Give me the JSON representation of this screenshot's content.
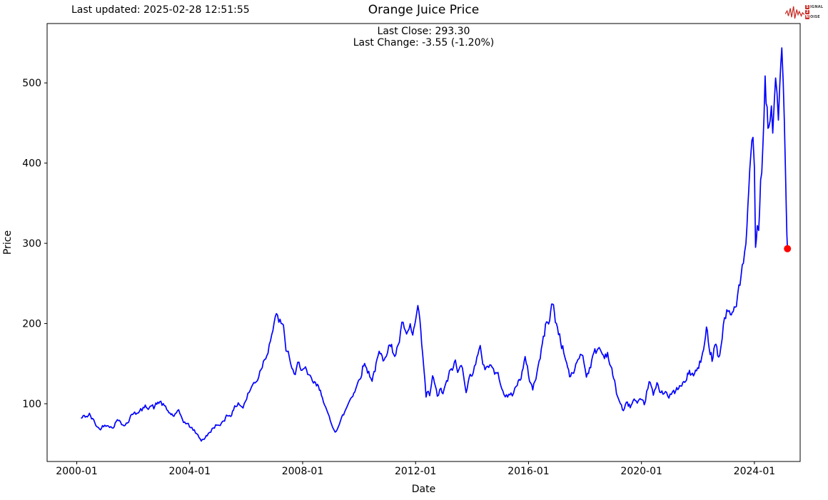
{
  "header": {
    "last_updated": "Last updated: 2025-02-28 12:51:55",
    "logo": {
      "s": "S",
      "ignal": "IGNAL",
      "two": "2",
      "n": "N",
      "oise": "OISE",
      "color": "#c92c25"
    }
  },
  "annotation": {
    "last_close": "Last Close: 293.30",
    "last_change": "Last Change: -3.55 (-1.20%)"
  },
  "chart_data": {
    "type": "line",
    "title": "Orange Juice Price",
    "xlabel": "Date",
    "ylabel": "Price",
    "x_tick_labels": [
      "2000-01",
      "2004-01",
      "2008-01",
      "2012-01",
      "2016-01",
      "2020-01",
      "2024-01"
    ],
    "x_tick_years": [
      2000,
      2004,
      2008,
      2012,
      2016,
      2020,
      2024
    ],
    "y_ticks": [
      100,
      200,
      300,
      400,
      500
    ],
    "xlim_years": [
      1998.95,
      2025.62
    ],
    "ylim": [
      28,
      574
    ],
    "grid": false,
    "legend": "none",
    "line_color": "#0000ff",
    "last_point": {
      "t": 2025.17,
      "date": "2025-02-28",
      "value": 293.3,
      "color": "#ff0000"
    },
    "series": [
      {
        "name": "Price",
        "points": [
          [
            2000.15,
            82
          ],
          [
            2000.3,
            84
          ],
          [
            2000.45,
            86
          ],
          [
            2000.6,
            78
          ],
          [
            2000.8,
            68
          ],
          [
            2000.95,
            73
          ],
          [
            2001.12,
            76
          ],
          [
            2001.25,
            70
          ],
          [
            2001.4,
            78
          ],
          [
            2001.55,
            80
          ],
          [
            2001.67,
            73
          ],
          [
            2001.84,
            79
          ],
          [
            2002.05,
            92
          ],
          [
            2002.18,
            88
          ],
          [
            2002.35,
            93
          ],
          [
            2002.5,
            97
          ],
          [
            2002.6,
            99
          ],
          [
            2002.73,
            95
          ],
          [
            2002.94,
            103
          ],
          [
            2003.1,
            96
          ],
          [
            2003.19,
            91
          ],
          [
            2003.3,
            88
          ],
          [
            2003.44,
            85
          ],
          [
            2003.61,
            88
          ],
          [
            2003.78,
            79
          ],
          [
            2003.95,
            73
          ],
          [
            2004.12,
            68
          ],
          [
            2004.25,
            62
          ],
          [
            2004.41,
            55
          ],
          [
            2004.55,
            58
          ],
          [
            2004.62,
            60
          ],
          [
            2004.79,
            68
          ],
          [
            2004.92,
            74
          ],
          [
            2005.04,
            70
          ],
          [
            2005.2,
            80
          ],
          [
            2005.3,
            85
          ],
          [
            2005.45,
            88
          ],
          [
            2005.55,
            91
          ],
          [
            2005.72,
            102
          ],
          [
            2005.89,
            96
          ],
          [
            2006.06,
            111
          ],
          [
            2006.23,
            123
          ],
          [
            2006.4,
            132
          ],
          [
            2006.57,
            150
          ],
          [
            2006.73,
            165
          ],
          [
            2006.86,
            184
          ],
          [
            2006.99,
            200
          ],
          [
            2007.11,
            207
          ],
          [
            2007.2,
            202
          ],
          [
            2007.32,
            190
          ],
          [
            2007.41,
            168
          ],
          [
            2007.53,
            159
          ],
          [
            2007.66,
            138
          ],
          [
            2007.74,
            132
          ],
          [
            2007.87,
            153
          ],
          [
            2007.98,
            145
          ],
          [
            2008.1,
            140
          ],
          [
            2008.18,
            132
          ],
          [
            2008.35,
            127
          ],
          [
            2008.56,
            119
          ],
          [
            2008.77,
            104
          ],
          [
            2008.9,
            85
          ],
          [
            2009.02,
            73
          ],
          [
            2009.15,
            67
          ],
          [
            2009.3,
            75
          ],
          [
            2009.49,
            89
          ],
          [
            2009.7,
            108
          ],
          [
            2009.85,
            118
          ],
          [
            2009.95,
            125
          ],
          [
            2010.16,
            151
          ],
          [
            2010.3,
            142
          ],
          [
            2010.46,
            132
          ],
          [
            2010.6,
            148
          ],
          [
            2010.71,
            160
          ],
          [
            2010.85,
            155
          ],
          [
            2010.92,
            165
          ],
          [
            2011.05,
            175
          ],
          [
            2011.15,
            168
          ],
          [
            2011.26,
            162
          ],
          [
            2011.38,
            172
          ],
          [
            2011.47,
            187
          ],
          [
            2011.56,
            200
          ],
          [
            2011.68,
            179
          ],
          [
            2011.81,
            193
          ],
          [
            2011.9,
            185
          ],
          [
            2012,
            200
          ],
          [
            2012.08,
            220
          ],
          [
            2012.15,
            195
          ],
          [
            2012.25,
            160
          ],
          [
            2012.37,
            107
          ],
          [
            2012.45,
            115
          ],
          [
            2012.5,
            107
          ],
          [
            2012.6,
            135
          ],
          [
            2012.7,
            118
          ],
          [
            2012.77,
            110
          ],
          [
            2012.9,
            118
          ],
          [
            2012.97,
            112
          ],
          [
            2013.1,
            125
          ],
          [
            2013.2,
            136
          ],
          [
            2013.3,
            145
          ],
          [
            2013.41,
            151
          ],
          [
            2013.49,
            139
          ],
          [
            2013.58,
            144
          ],
          [
            2013.66,
            148
          ],
          [
            2013.79,
            120
          ],
          [
            2013.9,
            130
          ],
          [
            2014,
            140
          ],
          [
            2014.17,
            156
          ],
          [
            2014.29,
            165
          ],
          [
            2014.38,
            152
          ],
          [
            2014.46,
            145
          ],
          [
            2014.55,
            150
          ],
          [
            2014.67,
            148
          ],
          [
            2014.8,
            140
          ],
          [
            2014.92,
            134
          ],
          [
            2015.05,
            125
          ],
          [
            2015.13,
            116
          ],
          [
            2015.26,
            107
          ],
          [
            2015.38,
            112
          ],
          [
            2015.47,
            113
          ],
          [
            2015.6,
            125
          ],
          [
            2015.7,
            132
          ],
          [
            2015.88,
            154
          ],
          [
            2016,
            135
          ],
          [
            2016.15,
            119
          ],
          [
            2016.3,
            140
          ],
          [
            2016.45,
            165
          ],
          [
            2016.6,
            195
          ],
          [
            2016.75,
            210
          ],
          [
            2016.85,
            226
          ],
          [
            2016.95,
            205
          ],
          [
            2017.1,
            185
          ],
          [
            2017.25,
            165
          ],
          [
            2017.35,
            150
          ],
          [
            2017.49,
            131
          ],
          [
            2017.6,
            140
          ],
          [
            2017.75,
            155
          ],
          [
            2017.88,
            167
          ],
          [
            2018.05,
            136
          ],
          [
            2018.2,
            150
          ],
          [
            2018.35,
            163
          ],
          [
            2018.5,
            170
          ],
          [
            2018.65,
            160
          ],
          [
            2018.8,
            165
          ],
          [
            2018.95,
            140
          ],
          [
            2019.05,
            125
          ],
          [
            2019.15,
            110
          ],
          [
            2019.36,
            91
          ],
          [
            2019.5,
            100
          ],
          [
            2019.6,
            97
          ],
          [
            2019.74,
            105
          ],
          [
            2019.85,
            98
          ],
          [
            2019.95,
            100
          ],
          [
            2020.1,
            98
          ],
          [
            2020.27,
            129
          ],
          [
            2020.42,
            110
          ],
          [
            2020.55,
            122
          ],
          [
            2020.65,
            117
          ],
          [
            2020.76,
            115
          ],
          [
            2020.85,
            120
          ],
          [
            2020.97,
            107
          ],
          [
            2021.1,
            112
          ],
          [
            2021.25,
            117
          ],
          [
            2021.35,
            119
          ],
          [
            2021.5,
            125
          ],
          [
            2021.6,
            130
          ],
          [
            2021.7,
            141
          ],
          [
            2021.84,
            134
          ],
          [
            2021.95,
            140
          ],
          [
            2022.1,
            153
          ],
          [
            2022.2,
            165
          ],
          [
            2022.3,
            189
          ],
          [
            2022.4,
            175
          ],
          [
            2022.5,
            158
          ],
          [
            2022.6,
            181
          ],
          [
            2022.7,
            165
          ],
          [
            2022.77,
            159
          ],
          [
            2022.9,
            198
          ],
          [
            2023.02,
            218
          ],
          [
            2023.15,
            207
          ],
          [
            2023.25,
            215
          ],
          [
            2023.36,
            229
          ],
          [
            2023.45,
            245
          ],
          [
            2023.53,
            254
          ],
          [
            2023.61,
            270
          ],
          [
            2023.7,
            300
          ],
          [
            2023.8,
            350
          ],
          [
            2023.87,
            405
          ],
          [
            2023.95,
            424
          ],
          [
            2024,
            380
          ],
          [
            2024.04,
            294
          ],
          [
            2024.1,
            330
          ],
          [
            2024.15,
            310
          ],
          [
            2024.22,
            365
          ],
          [
            2024.3,
            420
          ],
          [
            2024.38,
            490
          ],
          [
            2024.45,
            455
          ],
          [
            2024.51,
            432
          ],
          [
            2024.6,
            470
          ],
          [
            2024.65,
            440
          ],
          [
            2024.7,
            485
          ],
          [
            2024.75,
            520
          ],
          [
            2024.8,
            480
          ],
          [
            2024.85,
            446
          ],
          [
            2024.9,
            500
          ],
          [
            2024.97,
            549
          ],
          [
            2025.02,
            500
          ],
          [
            2025.06,
            455
          ],
          [
            2025.1,
            392
          ],
          [
            2025.13,
            340
          ],
          [
            2025.15,
            310
          ],
          [
            2025.17,
            293.3
          ]
        ]
      }
    ]
  }
}
